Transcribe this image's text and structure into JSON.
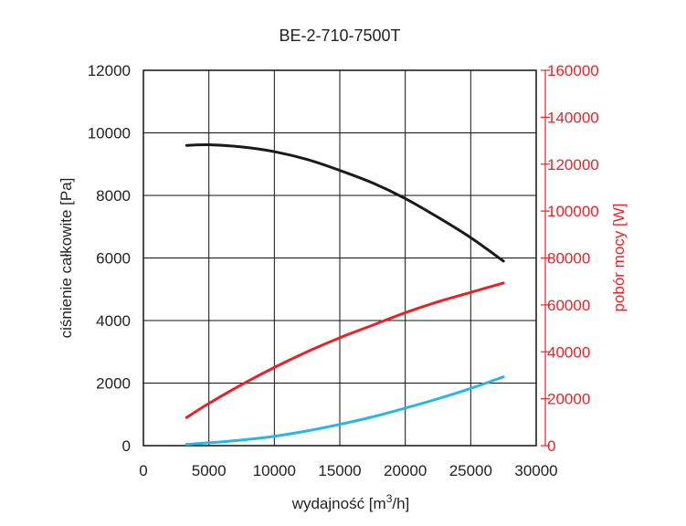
{
  "chart_data": {
    "type": "line",
    "title": "BE-2-710-7500T",
    "xlabel": "wydajność [m³/h]",
    "ylabel_left": "ciśnienie całkowite [Pa]",
    "ylabel_right": "pobór mocy [W]",
    "xlim": [
      0,
      30000
    ],
    "ylim_left": [
      0,
      12000
    ],
    "ylim_right": [
      0,
      160000
    ],
    "xticks": [
      "0",
      "5000",
      "10000",
      "15000",
      "20000",
      "25000",
      "30000"
    ],
    "yticks_left": [
      "0",
      "2000",
      "4000",
      "6000",
      "8000",
      "10000",
      "12000"
    ],
    "yticks_right": [
      "0",
      "20000",
      "40000",
      "60000",
      "80000",
      "100000",
      "120000",
      "140000",
      "160000"
    ],
    "grid": true,
    "colors": {
      "left_axis": "#222222",
      "right_axis": "#e5242a",
      "grid": "#111111"
    },
    "series": [
      {
        "axis": "left",
        "color": "#1a1a1a",
        "x": [
          3300,
          5000,
          7500,
          10000,
          12500,
          15000,
          17500,
          20000,
          22500,
          25000,
          27500
        ],
        "y": [
          9600,
          9620,
          9550,
          9400,
          9150,
          8800,
          8400,
          7900,
          7300,
          6650,
          5900
        ]
      },
      {
        "axis": "left",
        "color": "#e5242a",
        "x": [
          3300,
          5000,
          7500,
          10000,
          12500,
          15000,
          17500,
          20000,
          22500,
          25000,
          27500
        ],
        "y": [
          900,
          1350,
          1950,
          2500,
          3000,
          3450,
          3850,
          4250,
          4600,
          4900,
          5200
        ]
      },
      {
        "axis": "left",
        "color": "#27b6e6",
        "x": [
          3300,
          5000,
          7500,
          10000,
          12500,
          15000,
          17500,
          20000,
          22500,
          25000,
          27500
        ],
        "y": [
          40,
          90,
          180,
          300,
          470,
          680,
          920,
          1200,
          1500,
          1830,
          2200
        ]
      }
    ]
  }
}
